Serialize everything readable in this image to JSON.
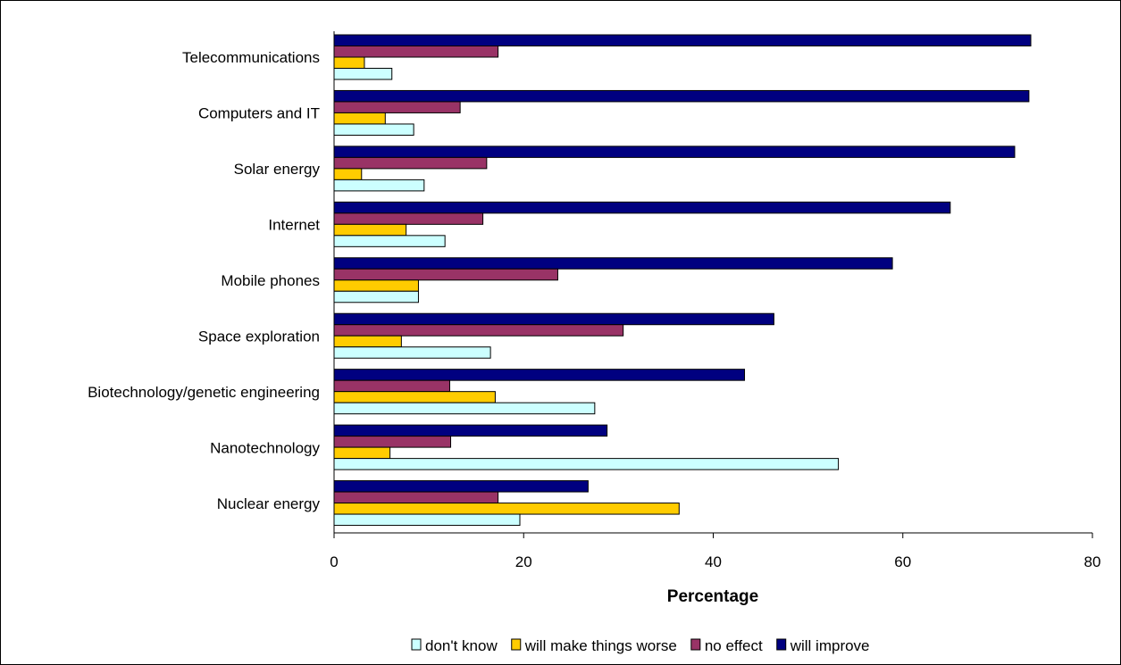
{
  "chart_data": {
    "type": "bar",
    "orientation": "horizontal",
    "categories": [
      "Telecommunications",
      "Computers and IT",
      "Solar energy",
      "Internet",
      "Mobile phones",
      "Space exploration",
      "Biotechnology/genetic engineering",
      "Nanotechnology",
      "Nuclear energy"
    ],
    "series": [
      {
        "name": "don't know",
        "color": "#ccffff",
        "values": [
          6.1,
          8.4,
          9.5,
          11.7,
          8.9,
          16.5,
          27.5,
          53.2,
          19.6
        ]
      },
      {
        "name": "will make things worse",
        "color": "#ffcc00",
        "values": [
          3.2,
          5.4,
          2.9,
          7.6,
          8.9,
          7.1,
          17.0,
          5.9,
          36.4
        ]
      },
      {
        "name": "no effect",
        "color": "#993366",
        "values": [
          17.3,
          13.3,
          16.1,
          15.7,
          23.6,
          30.5,
          12.2,
          12.3,
          17.3
        ]
      },
      {
        "name": "will improve",
        "color": "#000080",
        "values": [
          73.5,
          73.3,
          71.8,
          65.0,
          58.9,
          46.4,
          43.3,
          28.8,
          26.8
        ]
      }
    ],
    "xlabel": "Percentage",
    "ylabel": "",
    "xlim": [
      0,
      80
    ],
    "xticks": [
      "0",
      "20",
      "40",
      "60",
      "80"
    ],
    "grid": false,
    "legend_position": "bottom"
  }
}
